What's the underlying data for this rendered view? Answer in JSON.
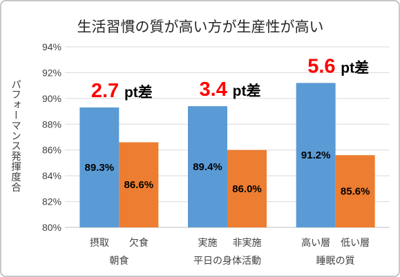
{
  "chart_data": {
    "type": "bar",
    "title": "生活習慣の質が高い方が生産性が高い",
    "ylabel": "パフォーマンス発揮度合",
    "ylim": [
      80,
      94
    ],
    "yticks": [
      80,
      82,
      84,
      86,
      88,
      90,
      92,
      94
    ],
    "ytick_labels": [
      "80%",
      "82%",
      "84%",
      "86%",
      "88%",
      "90%",
      "92%",
      "94%"
    ],
    "grid": true,
    "categories": [
      "朝食",
      "平日の身体活動",
      "睡眠の質"
    ],
    "series": [
      {
        "color": "#5B9BD5",
        "sub_labels": [
          "摂取",
          "実施",
          "高い層"
        ],
        "values": [
          89.3,
          89.4,
          91.2
        ],
        "data_labels": [
          "89.3%",
          "89.4%",
          "91.2%"
        ]
      },
      {
        "color": "#ED7D31",
        "sub_labels": [
          "欠食",
          "非実施",
          "低い層"
        ],
        "values": [
          86.6,
          86.0,
          85.6
        ],
        "data_labels": [
          "86.6%",
          "86.0%",
          "85.6%"
        ]
      }
    ],
    "annotations": [
      {
        "value": "2.7",
        "unit": "pt差",
        "value_color": "#FF0000"
      },
      {
        "value": "3.4",
        "unit": "pt差",
        "value_color": "#FF0000"
      },
      {
        "value": "5.6",
        "unit": "pt差",
        "value_color": "#FF0000"
      }
    ]
  }
}
